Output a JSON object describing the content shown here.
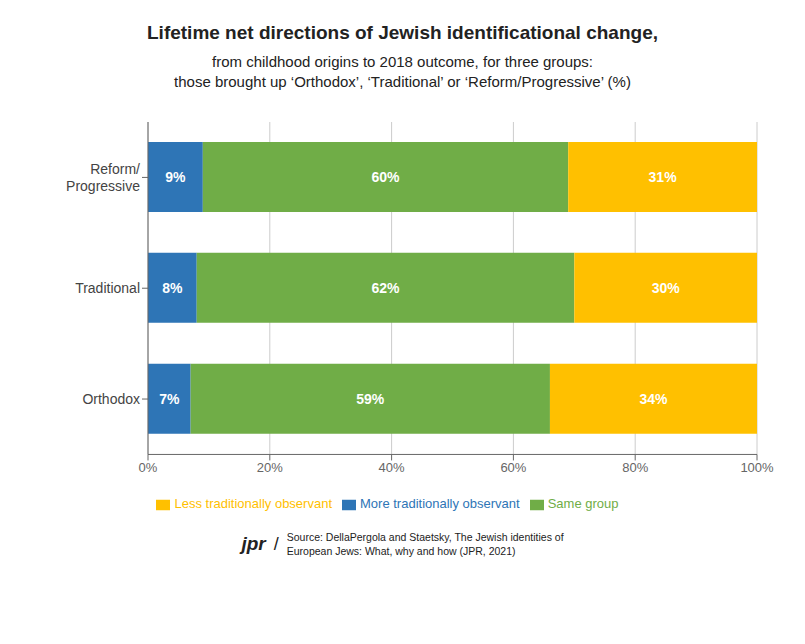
{
  "chart_data": {
    "type": "bar",
    "orientation": "horizontal",
    "stacked": true,
    "data_labels": true,
    "grid": true,
    "legend": "bottom",
    "title": "Lifetime net directions of Jewish identificational change,",
    "subtitle": [
      "from childhood origins to 2018 outcome, for three groups:",
      "those brought up ‘Orthodox’, ‘Traditional’ or ‘Reform/Progressive’ (%)"
    ],
    "annotations": [
      "jpr",
      "/",
      "Source: DellaPergola and Staetsky, The Jewish identities of",
      "European Jews: What, why and how (JPR, 2021)"
    ],
    "categories": [
      "Reform/\nProgressive",
      "Traditional",
      "Orthodox"
    ],
    "series": [
      {
        "name": "More traditionally observant",
        "color": "#2E75B6",
        "values": [
          9,
          8,
          7
        ],
        "value_labels": [
          "9%",
          "8%",
          "7%"
        ]
      },
      {
        "name": "Same group",
        "color": "#70AD47",
        "values": [
          60,
          62,
          59
        ],
        "value_labels": [
          "60%",
          "62%",
          "59%"
        ]
      },
      {
        "name": "Less traditionally observant",
        "color": "#FFC000",
        "values": [
          31,
          30,
          34
        ],
        "value_labels": [
          "31%",
          "30%",
          "34%"
        ]
      }
    ],
    "xlim": [
      0,
      100
    ],
    "xticks": [
      {
        "value": 0,
        "label": "0%"
      },
      {
        "value": 20,
        "label": "20%"
      },
      {
        "value": 40,
        "label": "40%"
      },
      {
        "value": 60,
        "label": "60%"
      },
      {
        "value": 80,
        "label": "80%"
      },
      {
        "value": 100,
        "label": "100%"
      }
    ]
  }
}
